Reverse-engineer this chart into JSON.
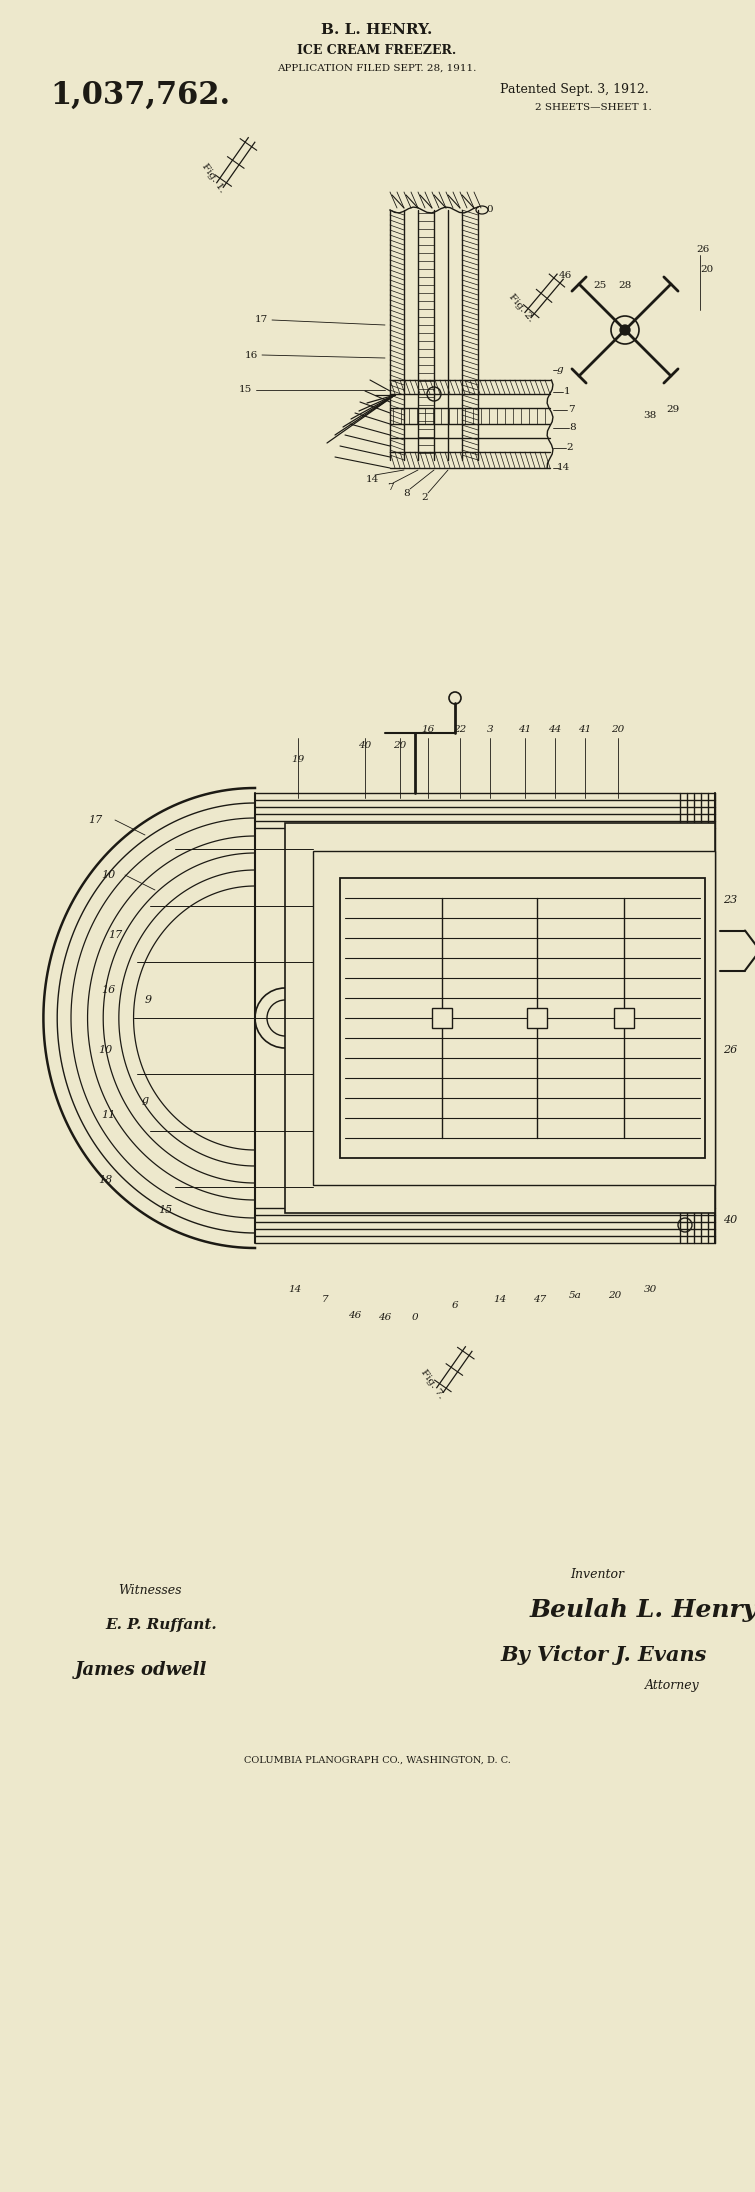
{
  "bg_color": "#EDE8CC",
  "ink_color": "#1C1A14",
  "title_line1": "B. L. HENRY.",
  "title_line2": "ICE CREAM FREEZER.",
  "title_line3": "APPLICATION FILED SEPT. 28, 1911.",
  "patent_number": "1,037,762.",
  "patented_text": "Patented Sept. 3, 1912.",
  "sheets_text": "2 SHEETS—SHEET 1.",
  "witnesses_label": "Witnesses",
  "witness1": "E. P. Ruffant.",
  "witness2": "James odwell",
  "inventor_label": "Inventor",
  "inventor_name": "Beulah L. Henry",
  "attorney_label": "Attorney",
  "attorney_name": "By Victor J. Evans",
  "footer": "COLUMBIA PLANOGRAPH CO., WASHINGTON, D. C.",
  "fig1_label": "Fig. 1.",
  "fig2_label": "Fig. 2.",
  "fig7_label": "Fig. 7."
}
